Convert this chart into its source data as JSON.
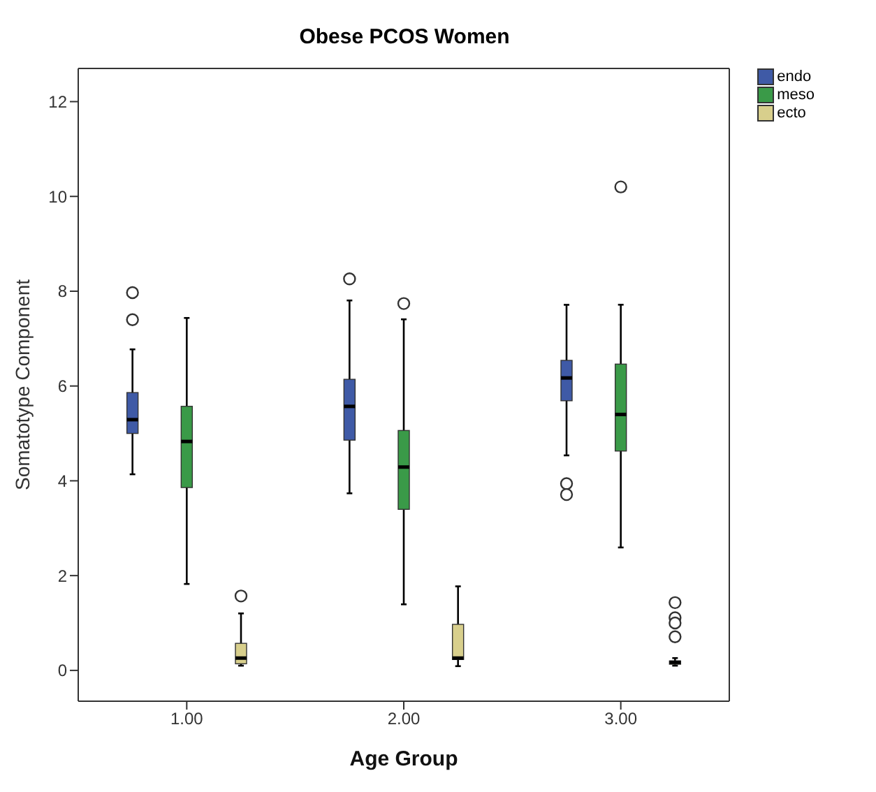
{
  "chart_data": {
    "type": "box",
    "title": "Obese PCOS Women",
    "xlabel": "Age Group",
    "ylabel": "Somatotype Component",
    "categories": [
      "1.00",
      "2.00",
      "3.00"
    ],
    "ylim": [
      -0.65,
      12.7
    ],
    "yticks": [
      0,
      2,
      4,
      6,
      8,
      10,
      12
    ],
    "legend": "top right",
    "series": [
      {
        "name": "endo",
        "color": "#3f5aa6",
        "boxes": [
          {
            "low": 4.14,
            "q1": 5.0,
            "median": 5.29,
            "q3": 5.86,
            "high": 6.77,
            "outliers": [
              7.97,
              7.4
            ]
          },
          {
            "low": 3.74,
            "q1": 4.86,
            "median": 5.57,
            "q3": 6.14,
            "high": 7.8,
            "outliers": [
              8.26
            ]
          },
          {
            "low": 4.54,
            "q1": 5.69,
            "median": 6.17,
            "q3": 6.54,
            "high": 7.71,
            "outliers": [
              3.94,
              3.71
            ]
          }
        ]
      },
      {
        "name": "meso",
        "color": "#3a9a48",
        "boxes": [
          {
            "low": 1.83,
            "q1": 3.86,
            "median": 4.83,
            "q3": 5.57,
            "high": 7.43
          },
          {
            "low": 1.4,
            "q1": 3.4,
            "median": 4.29,
            "q3": 5.06,
            "high": 7.4,
            "outliers": [
              7.74
            ]
          },
          {
            "low": 2.6,
            "q1": 4.63,
            "median": 5.4,
            "q3": 6.46,
            "high": 7.71,
            "outliers": [
              10.2
            ]
          }
        ]
      },
      {
        "name": "ecto",
        "color": "#d8cf8c",
        "boxes": [
          {
            "low": 0.1,
            "q1": 0.14,
            "median": 0.26,
            "q3": 0.57,
            "high": 1.2,
            "outliers": [
              1.57
            ]
          },
          {
            "low": 0.09,
            "q1": 0.23,
            "median": 0.26,
            "q3": 0.97,
            "high": 1.77
          },
          {
            "low": 0.1,
            "q1": 0.13,
            "median": 0.17,
            "q3": 0.2,
            "high": 0.26,
            "outliers": [
              1.43,
              1.11,
              1.0,
              0.71
            ]
          }
        ]
      }
    ]
  }
}
